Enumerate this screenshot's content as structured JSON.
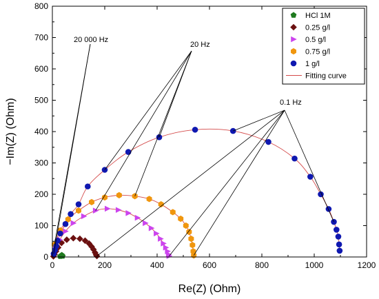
{
  "chart_data": {
    "type": "scatter",
    "xlabel": "Re(Z) (Ohm)",
    "ylabel": "−Im(Z) (Ohm)",
    "xlim": [
      0,
      1200
    ],
    "ylim": [
      0,
      800
    ],
    "xticks": [
      0,
      200,
      400,
      600,
      800,
      1000,
      1200
    ],
    "yticks": [
      0,
      100,
      200,
      300,
      400,
      500,
      600,
      700,
      800
    ],
    "legend_position": "top-right",
    "series": [
      {
        "name": "HCl 1M",
        "marker": "pentagon",
        "color": "#1f7a1f",
        "points": [
          [
            30,
            2
          ],
          [
            33,
            4
          ],
          [
            36,
            6
          ],
          [
            39,
            3
          ]
        ]
      },
      {
        "name": "0.25 g/l",
        "marker": "diamond",
        "color": "#6b1010",
        "points": [
          [
            4,
            2
          ],
          [
            8,
            8
          ],
          [
            14,
            18
          ],
          [
            22,
            30
          ],
          [
            35,
            45
          ],
          [
            55,
            55
          ],
          [
            80,
            60
          ],
          [
            105,
            58
          ],
          [
            125,
            52
          ],
          [
            140,
            43
          ],
          [
            150,
            33
          ],
          [
            157,
            24
          ],
          [
            163,
            14
          ],
          [
            167,
            7
          ],
          [
            170,
            3
          ]
        ]
      },
      {
        "name": "0.5 g/l",
        "marker": "triangle-right",
        "color": "#cc44ee",
        "points": [
          [
            12,
            30
          ],
          [
            28,
            55
          ],
          [
            50,
            82
          ],
          [
            80,
            108
          ],
          [
            120,
            130
          ],
          [
            165,
            148
          ],
          [
            210,
            154
          ],
          [
            252,
            150
          ],
          [
            290,
            140
          ],
          [
            325,
            125
          ],
          [
            355,
            108
          ],
          [
            378,
            92
          ],
          [
            397,
            75
          ],
          [
            413,
            58
          ],
          [
            424,
            43
          ],
          [
            433,
            30
          ],
          [
            440,
            18
          ],
          [
            444,
            8
          ],
          [
            446,
            3
          ]
        ]
      },
      {
        "name": "0.75 g/l",
        "marker": "hexagon",
        "color": "#f0960e",
        "points": [
          [
            8,
            40
          ],
          [
            30,
            85
          ],
          [
            60,
            120
          ],
          [
            100,
            148
          ],
          [
            150,
            175
          ],
          [
            200,
            190
          ],
          [
            255,
            197
          ],
          [
            315,
            194
          ],
          [
            370,
            185
          ],
          [
            415,
            168
          ],
          [
            460,
            143
          ],
          [
            490,
            122
          ],
          [
            510,
            100
          ],
          [
            522,
            80
          ],
          [
            530,
            58
          ],
          [
            535,
            38
          ],
          [
            538,
            18
          ],
          [
            540,
            5
          ]
        ]
      },
      {
        "name": "1 g/l",
        "marker": "circle",
        "color": "#0f18b0",
        "points": [
          [
            5,
            10
          ],
          [
            10,
            22
          ],
          [
            15,
            35
          ],
          [
            20,
            52
          ],
          [
            30,
            75
          ],
          [
            50,
            105
          ],
          [
            70,
            137
          ],
          [
            100,
            168
          ],
          [
            135,
            225
          ],
          [
            200,
            278
          ],
          [
            290,
            335
          ],
          [
            408,
            382
          ],
          [
            545,
            406
          ],
          [
            690,
            402
          ],
          [
            825,
            367
          ],
          [
            925,
            314
          ],
          [
            985,
            256
          ],
          [
            1025,
            200
          ],
          [
            1055,
            153
          ],
          [
            1075,
            112
          ],
          [
            1085,
            87
          ],
          [
            1092,
            65
          ],
          [
            1095,
            40
          ],
          [
            1097,
            20
          ]
        ]
      }
    ],
    "fitting_curve": {
      "name": "Fitting curve",
      "color": "#d44a4a"
    },
    "annotations": [
      {
        "text": "20 000 Hz"
      },
      {
        "text": "20 Hz"
      },
      {
        "text": "0.1 Hz"
      }
    ]
  }
}
